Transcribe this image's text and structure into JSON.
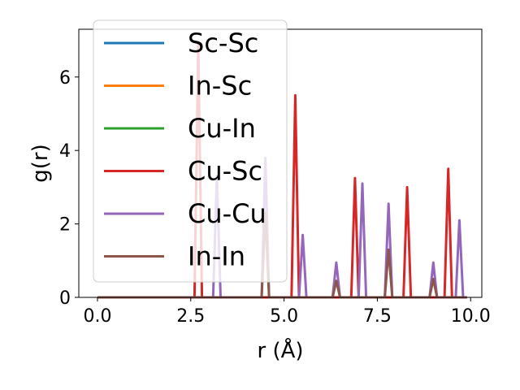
{
  "chart_data": {
    "type": "line",
    "xlabel": "r (Å)",
    "ylabel": "g(r)",
    "xlim": [
      -0.5,
      10.3
    ],
    "ylim": [
      0,
      7.3
    ],
    "xticks": [
      0.0,
      2.5,
      5.0,
      7.5,
      10.0
    ],
    "xtick_labels": [
      "0.0",
      "2.5",
      "5.0",
      "7.5",
      "10.0"
    ],
    "yticks": [
      0,
      2,
      4,
      6
    ],
    "ytick_labels": [
      "0",
      "2",
      "4",
      "6"
    ],
    "grid": false,
    "legend": "upper-left",
    "series": [
      {
        "name": "Sc-Sc",
        "color": "#1f77b4",
        "peaks": []
      },
      {
        "name": "In-Sc",
        "color": "#ff7f0e",
        "peaks": []
      },
      {
        "name": "Cu-In",
        "color": "#2ca02c",
        "peaks": []
      },
      {
        "name": "Cu-Sc",
        "color": "#d62728",
        "peaks": [
          [
            2.7,
            6.9
          ],
          [
            5.3,
            5.5
          ],
          [
            6.9,
            3.25
          ],
          [
            8.3,
            3.0
          ],
          [
            9.4,
            3.5
          ]
        ]
      },
      {
        "name": "Cu-Cu",
        "color": "#9467bd",
        "peaks": [
          [
            3.2,
            3.3
          ],
          [
            4.5,
            3.8
          ],
          [
            5.5,
            1.7
          ],
          [
            6.4,
            0.95
          ],
          [
            7.1,
            3.1
          ],
          [
            7.8,
            2.55
          ],
          [
            9.0,
            0.95
          ],
          [
            9.7,
            2.1
          ]
        ]
      },
      {
        "name": "In-In",
        "color": "#8c564b",
        "peaks": [
          [
            4.5,
            2.3
          ],
          [
            6.4,
            0.45
          ],
          [
            7.8,
            1.3
          ],
          [
            9.0,
            0.5
          ]
        ]
      }
    ]
  }
}
